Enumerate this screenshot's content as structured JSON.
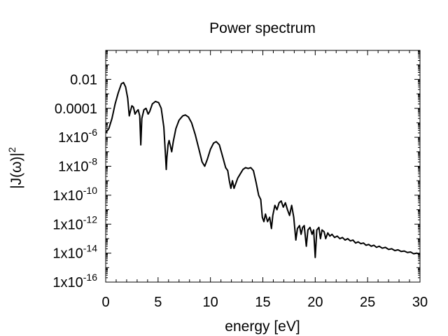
{
  "chart_data": {
    "type": "line",
    "title": "Power spectrum",
    "xlabel": "energy [eV]",
    "ylabel": {
      "base": "|J(ω)|",
      "exponent": "2"
    },
    "xlim": [
      0,
      30
    ],
    "ylim": [
      1e-16,
      1
    ],
    "yscale": "log",
    "grid": false,
    "legend": "none",
    "line_color": "#000000",
    "x_ticks": [
      {
        "value": 0,
        "label": "0"
      },
      {
        "value": 5,
        "label": "5"
      },
      {
        "value": 10,
        "label": "10"
      },
      {
        "value": 15,
        "label": "15"
      },
      {
        "value": 20,
        "label": "20"
      },
      {
        "value": 25,
        "label": "25"
      },
      {
        "value": 30,
        "label": "30"
      }
    ],
    "y_ticks": [
      {
        "value": 0.01,
        "base": "0.01",
        "exponent": ""
      },
      {
        "value": 0.0001,
        "base": "0.0001",
        "exponent": ""
      },
      {
        "value": 1e-06,
        "base": "1x10",
        "exponent": "-6"
      },
      {
        "value": 1e-08,
        "base": "1x10",
        "exponent": "-8"
      },
      {
        "value": 1e-10,
        "base": "1x10",
        "exponent": "-10"
      },
      {
        "value": 1e-12,
        "base": "1x10",
        "exponent": "-12"
      },
      {
        "value": 1e-14,
        "base": "1x10",
        "exponent": "-14"
      },
      {
        "value": 1e-16,
        "base": "1x10",
        "exponent": "-16"
      }
    ],
    "series": [
      {
        "points": [
          [
            0.0,
            2e-06
          ],
          [
            0.3,
            4e-06
          ],
          [
            0.6,
            2e-05
          ],
          [
            0.9,
            0.0002
          ],
          [
            1.2,
            0.0012
          ],
          [
            1.5,
            0.005
          ],
          [
            1.7,
            0.006
          ],
          [
            1.9,
            0.003
          ],
          [
            2.1,
            0.0005
          ],
          [
            2.25,
            3e-05
          ],
          [
            2.35,
            6e-05
          ],
          [
            2.5,
            0.00015
          ],
          [
            2.65,
            0.00012
          ],
          [
            2.8,
            4e-05
          ],
          [
            2.95,
            6e-05
          ],
          [
            3.1,
            8e-05
          ],
          [
            3.25,
            3e-05
          ],
          [
            3.35,
            3e-07
          ],
          [
            3.45,
            2e-05
          ],
          [
            3.65,
            8e-05
          ],
          [
            3.85,
            0.0001
          ],
          [
            4.05,
            4e-05
          ],
          [
            4.2,
            6e-05
          ],
          [
            4.45,
            0.0002
          ],
          [
            4.75,
            0.0003
          ],
          [
            5.05,
            0.00025
          ],
          [
            5.3,
            0.0001
          ],
          [
            5.55,
            5e-06
          ],
          [
            5.72,
            4e-08
          ],
          [
            5.78,
            6e-09
          ],
          [
            5.84,
            4e-08
          ],
          [
            5.95,
            3e-07
          ],
          [
            6.05,
            6e-07
          ],
          [
            6.15,
            3e-07
          ],
          [
            6.3,
            1e-07
          ],
          [
            6.45,
            5e-07
          ],
          [
            6.7,
            4e-06
          ],
          [
            7.0,
            1.5e-05
          ],
          [
            7.35,
            3e-05
          ],
          [
            7.6,
            3.5e-05
          ],
          [
            7.9,
            2.5e-05
          ],
          [
            8.2,
            1e-05
          ],
          [
            8.55,
            1.5e-06
          ],
          [
            8.9,
            1.5e-07
          ],
          [
            9.2,
            2e-08
          ],
          [
            9.45,
            1e-08
          ],
          [
            9.7,
            3e-08
          ],
          [
            10.0,
            1.5e-07
          ],
          [
            10.3,
            4e-07
          ],
          [
            10.55,
            5e-07
          ],
          [
            10.85,
            3e-07
          ],
          [
            11.15,
            5e-08
          ],
          [
            11.45,
            8e-09
          ],
          [
            11.65,
            5e-09
          ],
          [
            11.8,
            1e-09
          ],
          [
            11.95,
            3e-10
          ],
          [
            12.1,
            1e-09
          ],
          [
            12.25,
            3e-10
          ],
          [
            12.4,
            6e-10
          ],
          [
            12.6,
            1.5e-09
          ],
          [
            12.85,
            3e-09
          ],
          [
            13.1,
            6e-09
          ],
          [
            13.35,
            8e-09
          ],
          [
            13.6,
            7e-09
          ],
          [
            13.85,
            8e-09
          ],
          [
            14.1,
            5e-09
          ],
          [
            14.35,
            8e-10
          ],
          [
            14.6,
            1e-10
          ],
          [
            14.8,
            5e-11
          ],
          [
            14.95,
            3e-12
          ],
          [
            15.1,
            1.5e-12
          ],
          [
            15.25,
            5e-12
          ],
          [
            15.45,
            1.5e-12
          ],
          [
            15.65,
            3e-12
          ],
          [
            15.82,
            5e-13
          ],
          [
            15.95,
            4e-12
          ],
          [
            16.15,
            2e-11
          ],
          [
            16.35,
            1e-11
          ],
          [
            16.55,
            3e-11
          ],
          [
            16.75,
            4e-11
          ],
          [
            16.95,
            1.5e-11
          ],
          [
            17.15,
            3e-11
          ],
          [
            17.35,
            1e-11
          ],
          [
            17.55,
            4e-12
          ],
          [
            17.75,
            2e-11
          ],
          [
            17.95,
            3e-12
          ],
          [
            18.15,
            8e-14
          ],
          [
            18.3,
            5e-13
          ],
          [
            18.5,
            8e-13
          ],
          [
            18.65,
            2e-13
          ],
          [
            18.8,
            6e-13
          ],
          [
            18.95,
            8e-13
          ],
          [
            19.15,
            3e-14
          ],
          [
            19.3,
            4e-13
          ],
          [
            19.5,
            6e-13
          ],
          [
            19.7,
            2e-13
          ],
          [
            19.85,
            4e-13
          ],
          [
            20.0,
            5e-15
          ],
          [
            20.15,
            4e-13
          ],
          [
            20.35,
            6e-13
          ],
          [
            20.5,
            1e-13
          ],
          [
            20.65,
            4e-13
          ],
          [
            20.85,
            3e-13
          ],
          [
            21.0,
            1e-13
          ],
          [
            21.2,
            2.5e-13
          ],
          [
            21.4,
            1.5e-13
          ],
          [
            21.6,
            2e-13
          ],
          [
            21.85,
            1.2e-13
          ],
          [
            22.1,
            1.5e-13
          ],
          [
            22.35,
            1e-13
          ],
          [
            22.6,
            1.2e-13
          ],
          [
            22.85,
            8e-14
          ],
          [
            23.1,
            1e-13
          ],
          [
            23.35,
            7e-14
          ],
          [
            23.6,
            8e-14
          ],
          [
            23.85,
            5e-14
          ],
          [
            24.1,
            6e-14
          ],
          [
            24.35,
            4.5e-14
          ],
          [
            24.6,
            5e-14
          ],
          [
            24.85,
            3.5e-14
          ],
          [
            25.1,
            4e-14
          ],
          [
            25.35,
            3e-14
          ],
          [
            25.6,
            3.5e-14
          ],
          [
            25.85,
            2.5e-14
          ],
          [
            26.1,
            3e-14
          ],
          [
            26.4,
            2.2e-14
          ],
          [
            26.7,
            2.5e-14
          ],
          [
            27.0,
            1.8e-14
          ],
          [
            27.3,
            2e-14
          ],
          [
            27.6,
            1.5e-14
          ],
          [
            27.9,
            1.7e-14
          ],
          [
            28.2,
            1.3e-14
          ],
          [
            28.5,
            1.4e-14
          ],
          [
            28.8,
            1.1e-14
          ],
          [
            29.1,
            1.2e-14
          ],
          [
            29.4,
            9e-15
          ],
          [
            29.7,
            1e-14
          ],
          [
            30.0,
            8e-15
          ]
        ]
      }
    ]
  }
}
